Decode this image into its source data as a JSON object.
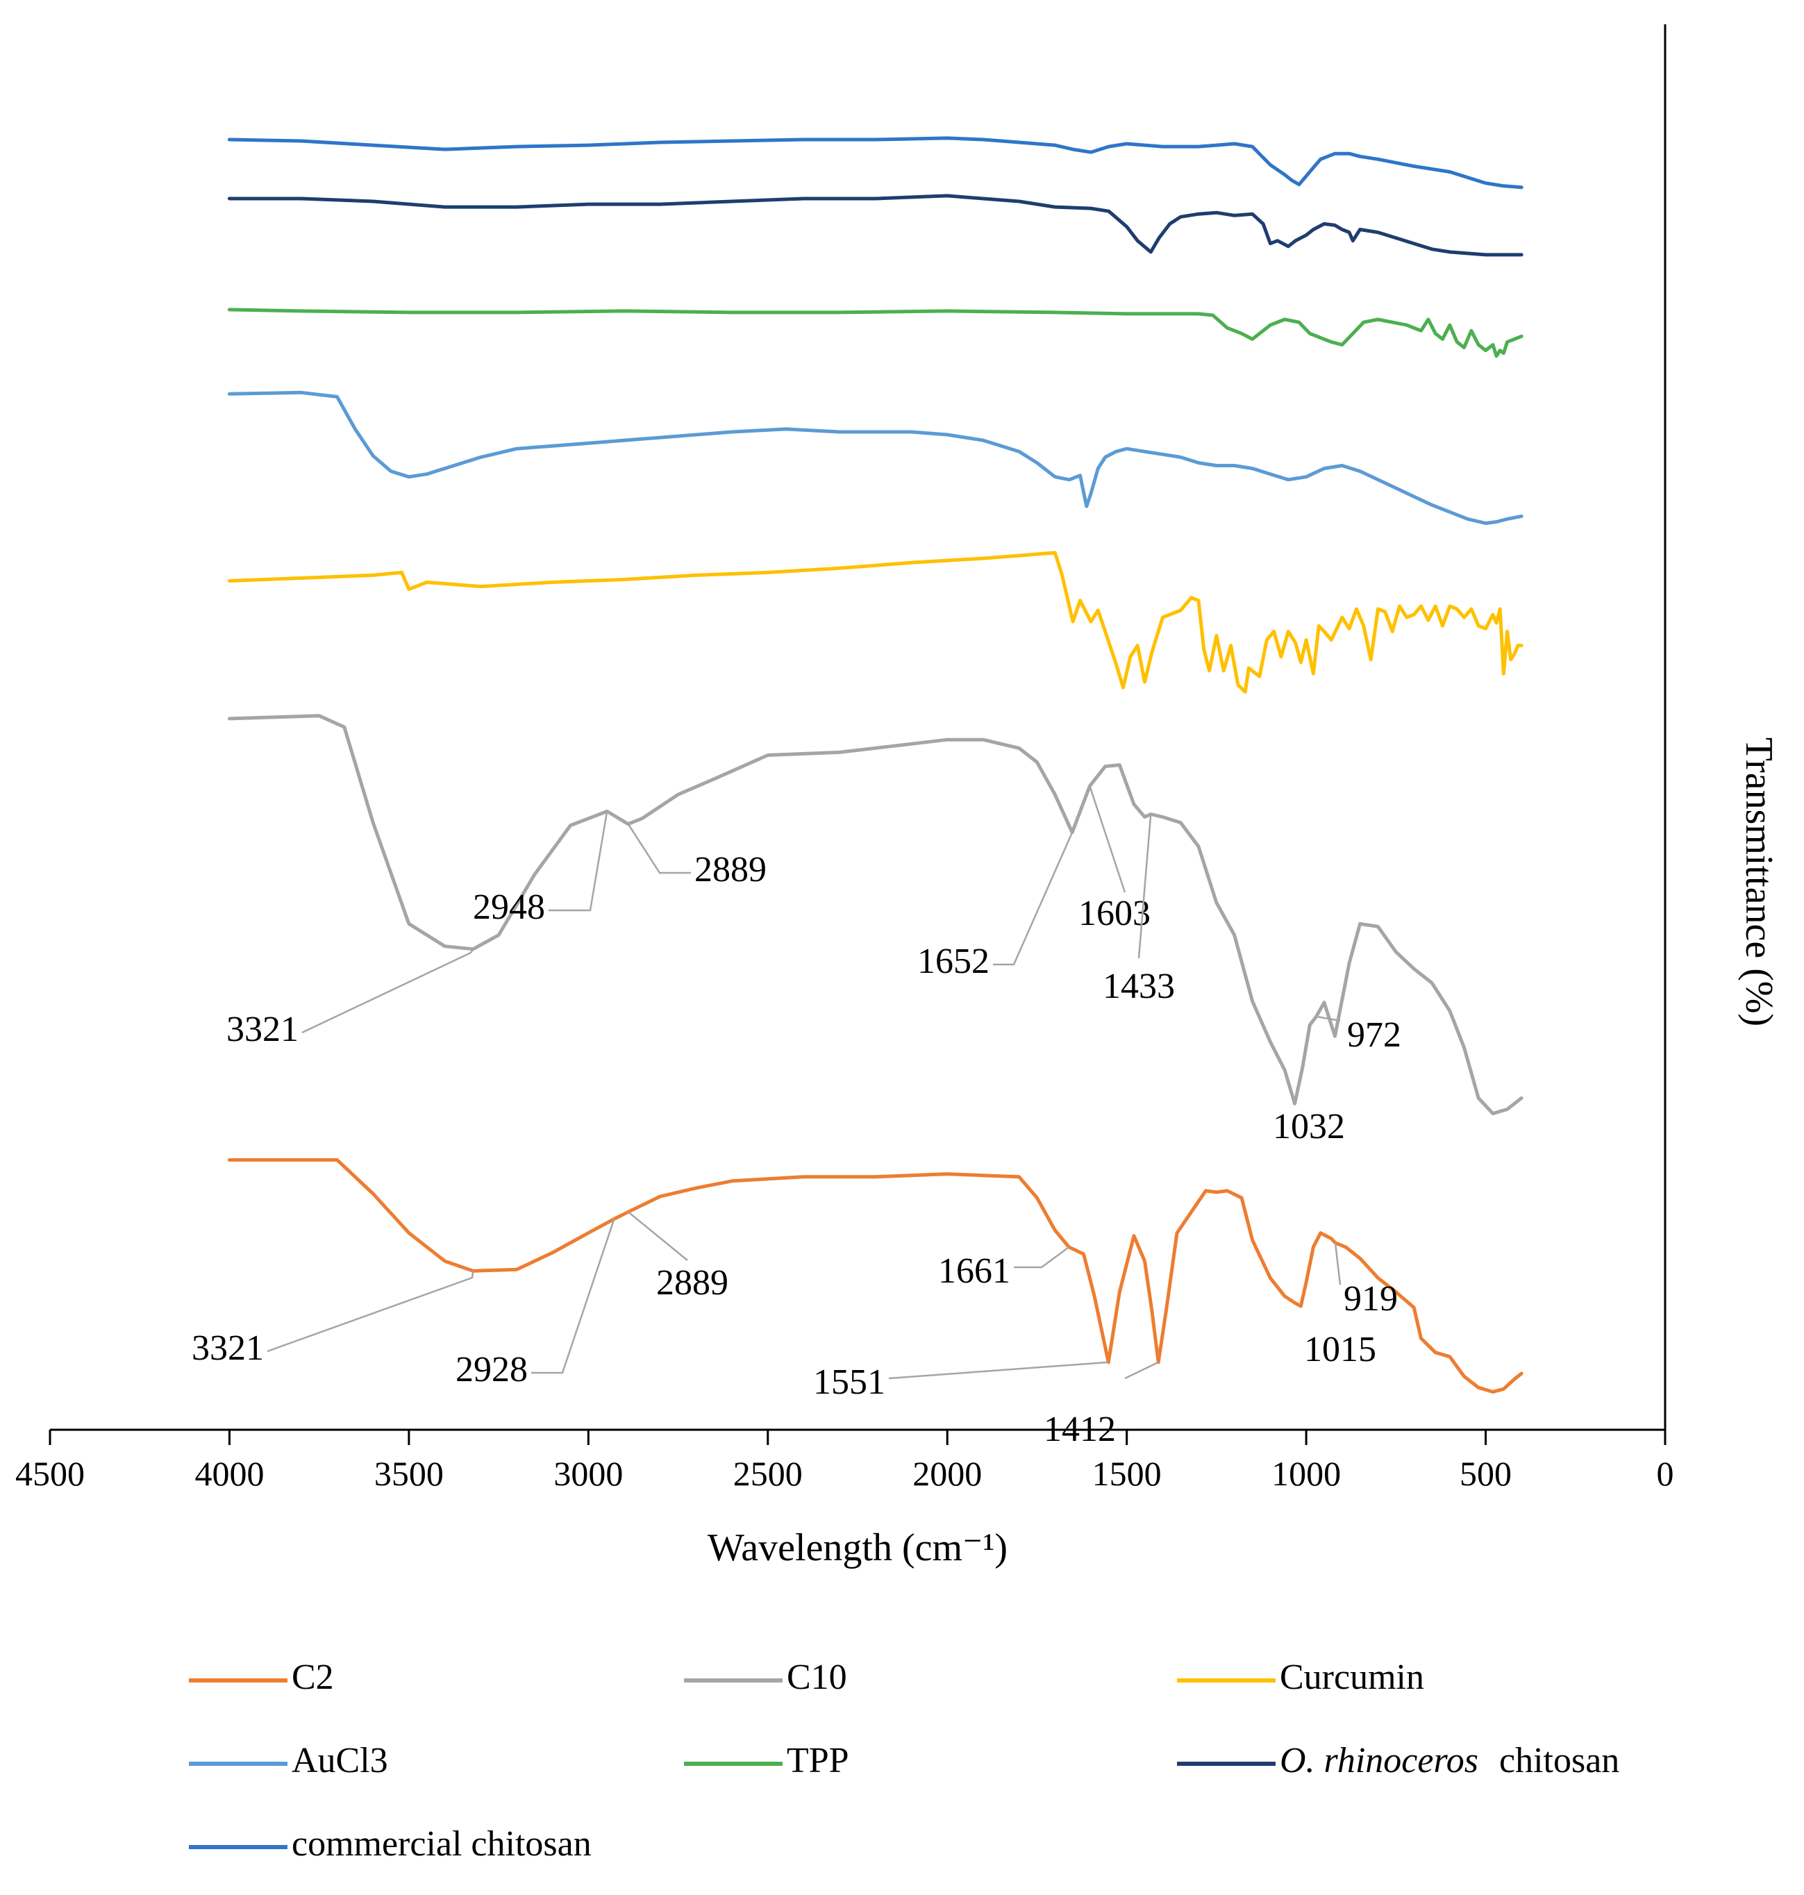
{
  "chart_data": {
    "type": "line",
    "title": "",
    "xlabel": "Wavelength (cm⁻¹)",
    "ylabel": "Transmittance (%)",
    "xlim": [
      4500,
      0
    ],
    "x_reversed": true,
    "x_ticks": [
      "4500",
      "4000",
      "3500",
      "3000",
      "2500",
      "2000",
      "1500",
      "1000",
      "500",
      "0"
    ],
    "x_tick_values": [
      4500,
      4000,
      3500,
      3000,
      2500,
      2000,
      1500,
      1000,
      500,
      0
    ],
    "y_axis_position": "right",
    "y_ticks_shown": false,
    "grid": false,
    "ylim": [
      0,
      100
    ],
    "legend_position": "bottom",
    "series": [
      {
        "name": "C2",
        "color": "#ED7D31",
        "x": [
          4000,
          3700,
          3600,
          3500,
          3400,
          3321,
          3200,
          3100,
          3000,
          2928,
          2889,
          2800,
          2700,
          2600,
          2400,
          2200,
          2000,
          1900,
          1800,
          1750,
          1700,
          1661,
          1620,
          1590,
          1551,
          1520,
          1480,
          1450,
          1430,
          1412,
          1390,
          1360,
          1320,
          1280,
          1250,
          1220,
          1180,
          1150,
          1100,
          1060,
          1030,
          1015,
          1000,
          980,
          960,
          930,
          919,
          890,
          850,
          800,
          750,
          700,
          680,
          640,
          600,
          560,
          520,
          480,
          450,
          420,
          400
        ],
        "y": [
          19.2,
          19.2,
          16.8,
          14.0,
          12.0,
          11.3,
          11.4,
          12.6,
          14.0,
          15.0,
          15.5,
          16.6,
          17.2,
          17.7,
          18.0,
          18.0,
          18.2,
          18.1,
          18.0,
          16.5,
          14.2,
          13.0,
          12.5,
          9.5,
          4.8,
          9.8,
          13.8,
          12.0,
          8.5,
          4.8,
          8.5,
          14.0,
          15.5,
          17.0,
          16.9,
          17.0,
          16.5,
          13.5,
          10.8,
          9.5,
          9.0,
          8.8,
          10.5,
          13.0,
          14.0,
          13.6,
          13.3,
          13.0,
          12.2,
          10.8,
          9.8,
          8.7,
          6.5,
          5.5,
          5.2,
          3.8,
          3.0,
          2.7,
          2.9,
          3.6,
          4.0
        ]
      },
      {
        "name": "C10",
        "color": "#A5A5A5",
        "x": [
          4000,
          3750,
          3680,
          3600,
          3500,
          3400,
          3321,
          3250,
          3150,
          3050,
          2948,
          2889,
          2850,
          2750,
          2650,
          2500,
          2300,
          2100,
          2000,
          1900,
          1800,
          1750,
          1700,
          1652,
          1603,
          1560,
          1520,
          1480,
          1450,
          1433,
          1400,
          1350,
          1300,
          1250,
          1200,
          1150,
          1100,
          1060,
          1032,
          1010,
          990,
          972,
          950,
          920,
          880,
          850,
          800,
          750,
          700,
          650,
          600,
          560,
          520,
          480,
          440,
          400
        ],
        "y": [
          50.6,
          50.8,
          50.0,
          43.2,
          36.0,
          34.4,
          34.2,
          35.2,
          39.5,
          43.0,
          44.0,
          43.1,
          43.5,
          45.2,
          46.3,
          48.0,
          48.2,
          48.8,
          49.1,
          49.1,
          48.5,
          47.5,
          45.2,
          42.5,
          45.8,
          47.2,
          47.3,
          44.5,
          43.6,
          43.8,
          43.6,
          43.2,
          41.5,
          37.5,
          35.2,
          30.5,
          27.6,
          25.6,
          23.2,
          25.8,
          28.8,
          29.4,
          30.4,
          28.0,
          33.2,
          36.0,
          35.8,
          34.0,
          32.8,
          31.8,
          29.8,
          27.2,
          23.6,
          22.5,
          22.8,
          23.6
        ]
      },
      {
        "name": "Curcumin",
        "color": "#FFC000",
        "x": [
          4000,
          3800,
          3600,
          3520,
          3500,
          3450,
          3300,
          3100,
          2900,
          2700,
          2500,
          2300,
          2100,
          1900,
          1800,
          1750,
          1700,
          1680,
          1650,
          1630,
          1600,
          1580,
          1560,
          1530,
          1510,
          1490,
          1470,
          1450,
          1430,
          1400,
          1350,
          1320,
          1300,
          1285,
          1270,
          1250,
          1230,
          1210,
          1190,
          1170,
          1160,
          1140,
          1130,
          1110,
          1090,
          1070,
          1050,
          1030,
          1015,
          1000,
          980,
          965,
          950,
          930,
          900,
          880,
          860,
          840,
          820,
          800,
          780,
          760,
          740,
          720,
          700,
          680,
          660,
          640,
          620,
          600,
          580,
          560,
          540,
          520,
          500,
          480,
          470,
          460,
          450,
          440,
          430,
          420,
          410,
          400
        ],
        "y": [
          60.4,
          60.6,
          60.8,
          61.0,
          59.8,
          60.3,
          60.0,
          60.3,
          60.5,
          60.8,
          61.0,
          61.3,
          61.7,
          62.0,
          62.2,
          62.3,
          62.4,
          60.8,
          57.5,
          59.0,
          57.5,
          58.3,
          56.8,
          54.5,
          52.8,
          55.0,
          55.8,
          53.2,
          55.3,
          57.8,
          58.3,
          59.2,
          59.0,
          55.5,
          54.0,
          56.5,
          54.0,
          55.8,
          53.0,
          52.5,
          54.2,
          53.8,
          53.6,
          56.2,
          56.8,
          55.0,
          56.8,
          56.0,
          54.6,
          56.2,
          53.8,
          57.2,
          56.8,
          56.2,
          57.8,
          57.0,
          58.4,
          57.2,
          54.8,
          58.4,
          58.2,
          56.8,
          58.6,
          57.8,
          58.0,
          58.6,
          57.6,
          58.6,
          57.2,
          58.6,
          58.4,
          57.8,
          58.4,
          57.2,
          57.0,
          58.0,
          57.4,
          58.4,
          53.8,
          56.8,
          54.8,
          55.2,
          55.8,
          55.8
        ]
      },
      {
        "name": "AuCl3",
        "color": "#5B9BD5",
        "x": [
          4000,
          3800,
          3700,
          3650,
          3600,
          3550,
          3500,
          3450,
          3400,
          3300,
          3200,
          3100,
          3000,
          2800,
          2600,
          2450,
          2300,
          2100,
          2000,
          1900,
          1800,
          1750,
          1700,
          1660,
          1630,
          1612,
          1600,
          1580,
          1560,
          1530,
          1500,
          1450,
          1400,
          1350,
          1300,
          1250,
          1200,
          1150,
          1100,
          1050,
          1000,
          950,
          900,
          850,
          800,
          750,
          700,
          650,
          600,
          550,
          500,
          470,
          440,
          420,
          400
        ],
        "y": [
          73.7,
          73.8,
          73.5,
          71.2,
          69.3,
          68.2,
          67.8,
          68.0,
          68.4,
          69.2,
          69.8,
          70.0,
          70.2,
          70.6,
          71.0,
          71.2,
          71.0,
          71.0,
          70.8,
          70.4,
          69.6,
          68.8,
          67.8,
          67.6,
          67.9,
          65.7,
          66.6,
          68.4,
          69.2,
          69.6,
          69.8,
          69.6,
          69.4,
          69.2,
          68.8,
          68.6,
          68.6,
          68.4,
          68.0,
          67.6,
          67.8,
          68.4,
          68.6,
          68.2,
          67.6,
          67.0,
          66.4,
          65.8,
          65.3,
          64.8,
          64.5,
          64.6,
          64.8,
          64.9,
          65.0
        ]
      },
      {
        "name": "TPP",
        "color": "#4CAF50",
        "x": [
          4000,
          3800,
          3500,
          3200,
          2900,
          2600,
          2300,
          2000,
          1700,
          1500,
          1300,
          1260,
          1220,
          1180,
          1150,
          1130,
          1100,
          1060,
          1020,
          990,
          960,
          930,
          900,
          870,
          840,
          800,
          760,
          720,
          680,
          660,
          640,
          620,
          600,
          580,
          560,
          540,
          520,
          500,
          480,
          470,
          460,
          450,
          440,
          420,
          400
        ],
        "y": [
          79.7,
          79.6,
          79.5,
          79.5,
          79.6,
          79.5,
          79.5,
          79.6,
          79.5,
          79.4,
          79.4,
          79.3,
          78.4,
          78.0,
          77.6,
          78.0,
          78.6,
          79.0,
          78.8,
          78.0,
          77.7,
          77.4,
          77.2,
          78.0,
          78.8,
          79.0,
          78.8,
          78.6,
          78.2,
          79.0,
          78.0,
          77.6,
          78.6,
          77.4,
          77.0,
          78.2,
          77.2,
          76.8,
          77.2,
          76.4,
          76.8,
          76.6,
          77.4,
          77.6,
          77.8
        ]
      },
      {
        "name": "O. rhinoceros chitosan",
        "color": "#1F3D6E",
        "x": [
          4000,
          3800,
          3600,
          3400,
          3200,
          3000,
          2800,
          2600,
          2400,
          2200,
          2000,
          1900,
          1800,
          1700,
          1600,
          1550,
          1500,
          1470,
          1433,
          1410,
          1380,
          1350,
          1300,
          1250,
          1200,
          1150,
          1120,
          1100,
          1080,
          1050,
          1030,
          1000,
          980,
          950,
          920,
          900,
          880,
          870,
          850,
          800,
          750,
          700,
          650,
          600,
          550,
          500,
          450,
          400
        ],
        "y": [
          87.6,
          87.6,
          87.4,
          87.0,
          87.0,
          87.2,
          87.2,
          87.4,
          87.6,
          87.6,
          87.8,
          87.6,
          87.4,
          87.0,
          86.9,
          86.7,
          85.6,
          84.6,
          83.8,
          84.8,
          85.8,
          86.3,
          86.5,
          86.6,
          86.4,
          86.5,
          85.8,
          84.4,
          84.6,
          84.2,
          84.6,
          85.0,
          85.4,
          85.8,
          85.7,
          85.4,
          85.2,
          84.6,
          85.4,
          85.2,
          84.8,
          84.4,
          84.0,
          83.8,
          83.7,
          83.6,
          83.6,
          83.6
        ]
      },
      {
        "name": "commercial chitosan",
        "color": "#2F75C9",
        "x": [
          4000,
          3800,
          3600,
          3400,
          3200,
          3000,
          2800,
          2600,
          2400,
          2200,
          2000,
          1900,
          1800,
          1700,
          1650,
          1600,
          1550,
          1500,
          1450,
          1400,
          1300,
          1250,
          1200,
          1150,
          1100,
          1060,
          1040,
          1020,
          1000,
          980,
          960,
          920,
          880,
          850,
          800,
          700,
          600,
          500,
          450,
          400
        ],
        "y": [
          91.8,
          91.7,
          91.4,
          91.1,
          91.3,
          91.4,
          91.6,
          91.7,
          91.8,
          91.8,
          91.9,
          91.8,
          91.6,
          91.4,
          91.1,
          90.9,
          91.3,
          91.5,
          91.4,
          91.3,
          91.3,
          91.4,
          91.5,
          91.3,
          90.0,
          89.3,
          88.9,
          88.6,
          89.2,
          89.8,
          90.4,
          90.8,
          90.8,
          90.6,
          90.4,
          89.9,
          89.5,
          88.7,
          88.5,
          88.4
        ]
      }
    ],
    "annotations": [
      {
        "series": "C10",
        "label": "3321",
        "x": 3321
      },
      {
        "series": "C10",
        "label": "2948",
        "x": 2948
      },
      {
        "series": "C10",
        "label": "2889",
        "x": 2889
      },
      {
        "series": "C10",
        "label": "1652",
        "x": 1652
      },
      {
        "series": "C10",
        "label": "1603",
        "x": 1603
      },
      {
        "series": "C10",
        "label": "1433",
        "x": 1433
      },
      {
        "series": "C10",
        "label": "972",
        "x": 972
      },
      {
        "series": "C10",
        "label": "1032",
        "x": 1032
      },
      {
        "series": "C2",
        "label": "3321",
        "x": 3321
      },
      {
        "series": "C2",
        "label": "2928",
        "x": 2928
      },
      {
        "series": "C2",
        "label": "2889",
        "x": 2889
      },
      {
        "series": "C2",
        "label": "1661",
        "x": 1661
      },
      {
        "series": "C2",
        "label": "1551",
        "x": 1551
      },
      {
        "series": "C2",
        "label": "1412",
        "x": 1412
      },
      {
        "series": "C2",
        "label": "919",
        "x": 919
      },
      {
        "series": "C2",
        "label": "1015",
        "x": 1015
      }
    ],
    "legend": [
      {
        "label": "C2",
        "color": "#ED7D31"
      },
      {
        "label": "C10",
        "color": "#A5A5A5"
      },
      {
        "label": "Curcumin",
        "color": "#FFC000"
      },
      {
        "label": "AuCl3",
        "color": "#5B9BD5"
      },
      {
        "label": "TPP",
        "color": "#4CAF50"
      },
      {
        "label_italic": "O. rhinoceros",
        "label_rest": "chitosan",
        "color": "#1F3D6E"
      },
      {
        "label": "commercial chitosan",
        "color": "#2F75C9"
      }
    ]
  }
}
